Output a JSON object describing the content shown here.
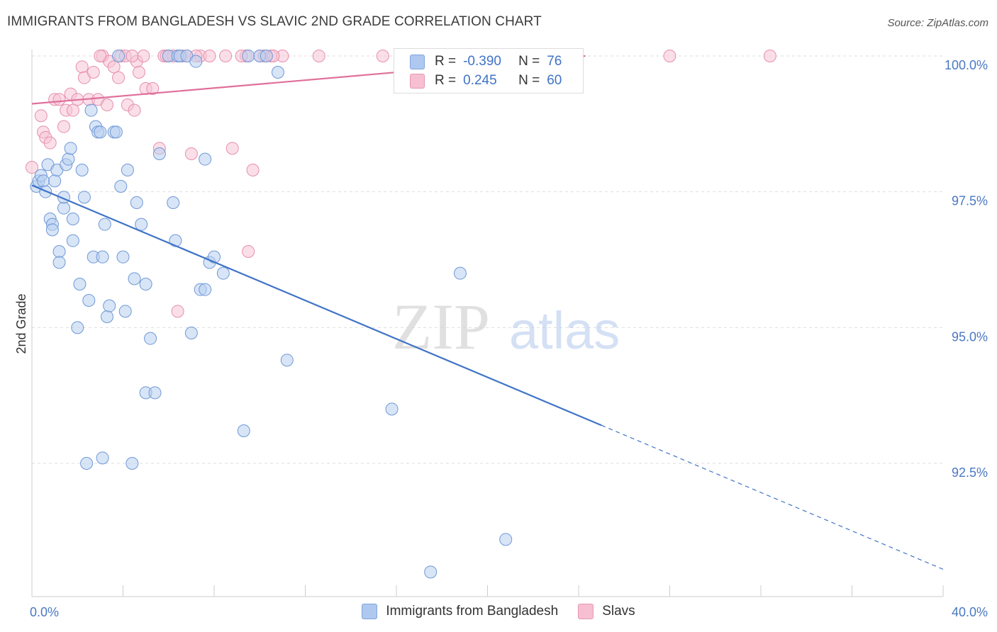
{
  "title": "IMMIGRANTS FROM BANGLADESH VS SLAVIC 2ND GRADE CORRELATION CHART",
  "source": "Source: ZipAtlas.com",
  "watermark": {
    "zip": "ZIP",
    "atlas": "atlas"
  },
  "colors": {
    "blue": "#3f73c6",
    "blue_fill": "#b8d0f0",
    "pink": "#e0709a",
    "pink_fill": "#f7c4d5",
    "grid": "#dddddd"
  },
  "legend": {
    "rows": [
      {
        "r_label": "R =",
        "r_value": "-0.390",
        "n_label": "N =",
        "n_value": "76",
        "swatch": "#aec8ef"
      },
      {
        "r_label": "R =",
        "r_value": "0.245",
        "n_label": "N =",
        "n_value": "60",
        "swatch": "#f7bfd2"
      }
    ]
  },
  "bottom_legend": [
    {
      "label": "Immigrants from Bangladesh",
      "color": "#aec8ef"
    },
    {
      "label": "Slavs",
      "color": "#f7bfd2"
    }
  ],
  "chart_data": {
    "type": "scatter",
    "title": "IMMIGRANTS FROM BANGLADESH VS SLAVIC 2ND GRADE CORRELATION CHART",
    "xlabel": "",
    "ylabel": "2nd Grade",
    "xlim": [
      0,
      40
    ],
    "ylim": [
      90.4,
      100.25
    ],
    "x_tick_labels": [
      "0.0%",
      "40.0%"
    ],
    "y_ticks": [
      92.5,
      95.0,
      97.5,
      100.0
    ],
    "y_tick_labels": [
      "92.5%",
      "95.0%",
      "97.5%",
      "100.0%"
    ],
    "grid": "horizontal dashed",
    "legend_placement": "top-center",
    "series": [
      {
        "name": "Immigrants from Bangladesh",
        "color": "#3f73c6",
        "r": -0.39,
        "n": 76,
        "trend": {
          "x0": 0,
          "y0": 97.62,
          "x1": 40,
          "y1": 90.55,
          "solid_until_x": 25.0
        },
        "points": [
          [
            0.2,
            97.6
          ],
          [
            0.3,
            97.7
          ],
          [
            0.4,
            97.8
          ],
          [
            0.5,
            97.7
          ],
          [
            0.6,
            97.5
          ],
          [
            0.7,
            98.0
          ],
          [
            0.8,
            97.0
          ],
          [
            0.9,
            96.9
          ],
          [
            0.9,
            96.8
          ],
          [
            1.0,
            97.7
          ],
          [
            1.1,
            97.9
          ],
          [
            1.2,
            96.4
          ],
          [
            1.2,
            96.2
          ],
          [
            1.4,
            97.2
          ],
          [
            1.4,
            97.4
          ],
          [
            1.5,
            98.0
          ],
          [
            1.6,
            98.1
          ],
          [
            1.7,
            98.3
          ],
          [
            1.8,
            96.6
          ],
          [
            1.8,
            97.0
          ],
          [
            2.0,
            95.0
          ],
          [
            2.1,
            95.8
          ],
          [
            2.2,
            97.9
          ],
          [
            2.3,
            97.4
          ],
          [
            2.5,
            95.5
          ],
          [
            2.6,
            99.0
          ],
          [
            2.7,
            96.3
          ],
          [
            2.8,
            98.7
          ],
          [
            2.9,
            98.6
          ],
          [
            3.0,
            98.6
          ],
          [
            3.1,
            96.3
          ],
          [
            3.2,
            96.9
          ],
          [
            3.3,
            95.2
          ],
          [
            3.4,
            95.4
          ],
          [
            3.6,
            98.6
          ],
          [
            3.7,
            98.6
          ],
          [
            3.8,
            100.0
          ],
          [
            3.9,
            97.6
          ],
          [
            4.0,
            96.3
          ],
          [
            4.1,
            95.3
          ],
          [
            4.2,
            97.9
          ],
          [
            4.4,
            92.5
          ],
          [
            4.5,
            95.9
          ],
          [
            4.6,
            97.3
          ],
          [
            4.8,
            96.9
          ],
          [
            5.0,
            95.8
          ],
          [
            5.0,
            93.8
          ],
          [
            5.2,
            94.8
          ],
          [
            5.4,
            93.8
          ],
          [
            5.6,
            98.2
          ],
          [
            6.0,
            100.0
          ],
          [
            6.2,
            97.3
          ],
          [
            6.3,
            96.6
          ],
          [
            6.4,
            100.0
          ],
          [
            6.5,
            100.0
          ],
          [
            6.8,
            100.0
          ],
          [
            7.0,
            94.9
          ],
          [
            7.2,
            99.9
          ],
          [
            7.4,
            95.7
          ],
          [
            7.6,
            98.1
          ],
          [
            7.6,
            95.7
          ],
          [
            7.8,
            96.2
          ],
          [
            8.0,
            96.3
          ],
          [
            8.4,
            96.0
          ],
          [
            9.3,
            93.1
          ],
          [
            9.5,
            100.0
          ],
          [
            10.0,
            100.0
          ],
          [
            10.3,
            100.0
          ],
          [
            10.8,
            99.7
          ],
          [
            11.2,
            94.4
          ],
          [
            15.8,
            93.5
          ],
          [
            17.5,
            90.5
          ],
          [
            18.8,
            96.0
          ],
          [
            20.8,
            91.1
          ],
          [
            2.4,
            92.5
          ],
          [
            3.1,
            92.6
          ]
        ]
      },
      {
        "name": "Slavs",
        "color": "#e0709a",
        "r": 0.245,
        "n": 60,
        "trend": {
          "x0": 0,
          "y0": 99.12,
          "x1": 24.3,
          "y1": 100.0
        },
        "points": [
          [
            0.0,
            97.95
          ],
          [
            0.4,
            98.9
          ],
          [
            0.5,
            98.6
          ],
          [
            0.6,
            98.5
          ],
          [
            0.8,
            98.4
          ],
          [
            1.0,
            99.2
          ],
          [
            1.2,
            99.2
          ],
          [
            1.4,
            98.7
          ],
          [
            1.5,
            99.0
          ],
          [
            1.7,
            99.3
          ],
          [
            1.8,
            99.0
          ],
          [
            2.0,
            99.2
          ],
          [
            2.2,
            99.8
          ],
          [
            2.3,
            99.6
          ],
          [
            2.5,
            99.2
          ],
          [
            2.7,
            99.7
          ],
          [
            2.9,
            99.2
          ],
          [
            3.1,
            100.0
          ],
          [
            3.3,
            99.1
          ],
          [
            3.4,
            99.9
          ],
          [
            3.6,
            99.8
          ],
          [
            3.8,
            99.6
          ],
          [
            3.9,
            100.0
          ],
          [
            4.1,
            100.0
          ],
          [
            4.2,
            99.1
          ],
          [
            4.5,
            99.0
          ],
          [
            4.6,
            99.9
          ],
          [
            4.7,
            99.7
          ],
          [
            4.9,
            100.0
          ],
          [
            5.0,
            99.4
          ],
          [
            5.3,
            99.4
          ],
          [
            5.6,
            98.3
          ],
          [
            5.8,
            100.0
          ],
          [
            6.0,
            100.0
          ],
          [
            6.2,
            100.0
          ],
          [
            6.4,
            95.3
          ],
          [
            6.6,
            100.0
          ],
          [
            6.8,
            100.0
          ],
          [
            7.0,
            98.2
          ],
          [
            7.4,
            100.0
          ],
          [
            7.8,
            100.0
          ],
          [
            8.5,
            100.0
          ],
          [
            8.8,
            98.3
          ],
          [
            9.4,
            100.0
          ],
          [
            9.5,
            96.4
          ],
          [
            9.7,
            97.9
          ],
          [
            10.0,
            100.0
          ],
          [
            10.2,
            100.0
          ],
          [
            10.5,
            100.0
          ],
          [
            11.0,
            100.0
          ],
          [
            12.6,
            100.0
          ],
          [
            15.4,
            100.0
          ],
          [
            28.0,
            100.0
          ],
          [
            32.4,
            100.0
          ],
          [
            3.0,
            100.0
          ],
          [
            4.4,
            100.0
          ],
          [
            7.2,
            100.0
          ],
          [
            9.2,
            100.0
          ],
          [
            10.6,
            100.0
          ],
          [
            5.9,
            100.0
          ]
        ]
      }
    ]
  }
}
